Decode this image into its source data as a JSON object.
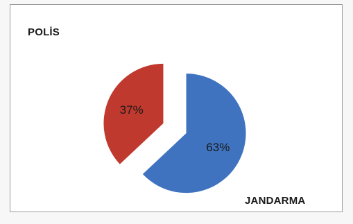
{
  "chart_data": {
    "type": "pie",
    "title": "",
    "slices": [
      {
        "label": "JANDARMA",
        "value": 63,
        "data_label": "63%",
        "color": "#3f73c0"
      },
      {
        "label": "POLİS",
        "value": 37,
        "data_label": "37%",
        "color": "#c0392e"
      }
    ],
    "exploded": true,
    "legend": "none"
  },
  "labels": {
    "polis": "POLİS",
    "jandarma": "JANDARMA"
  }
}
